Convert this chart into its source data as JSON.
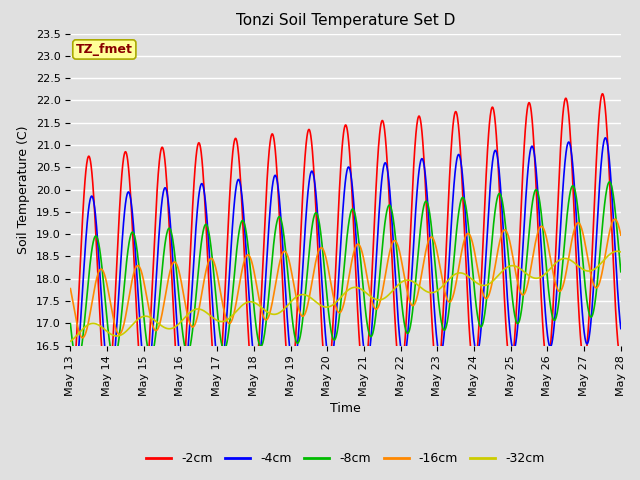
{
  "title": "Tonzi Soil Temperature Set D",
  "xlabel": "Time",
  "ylabel": "Soil Temperature (C)",
  "ylim": [
    16.5,
    23.5
  ],
  "xlim": [
    0,
    15
  ],
  "yticks": [
    16.5,
    17.0,
    17.5,
    18.0,
    18.5,
    19.0,
    19.5,
    20.0,
    20.5,
    21.0,
    21.5,
    22.0,
    22.5,
    23.0,
    23.5
  ],
  "xtick_labels": [
    "May 13",
    "May 14",
    "May 15",
    "May 16",
    "May 17",
    "May 18",
    "May 19",
    "May 20",
    "May 21",
    "May 22",
    "May 23",
    "May 24",
    "May 25",
    "May 26",
    "May 27",
    "May 28"
  ],
  "xtick_positions": [
    0,
    1,
    2,
    3,
    4,
    5,
    6,
    7,
    8,
    9,
    10,
    11,
    12,
    13,
    14,
    15
  ],
  "colors": {
    "-2cm": "#FF0000",
    "-4cm": "#0000FF",
    "-8cm": "#00BB00",
    "-16cm": "#FF8800",
    "-32cm": "#CCCC00"
  },
  "legend_label": "TZ_fmet",
  "legend_box_facecolor": "#FFFF99",
  "legend_box_edgecolor": "#AAAA00",
  "legend_text_color": "#880000",
  "background_color": "#E0E0E0",
  "grid_color": "#FFFFFF",
  "title_fontsize": 11,
  "axis_fontsize": 9,
  "tick_fontsize": 8,
  "linewidth": 1.2
}
